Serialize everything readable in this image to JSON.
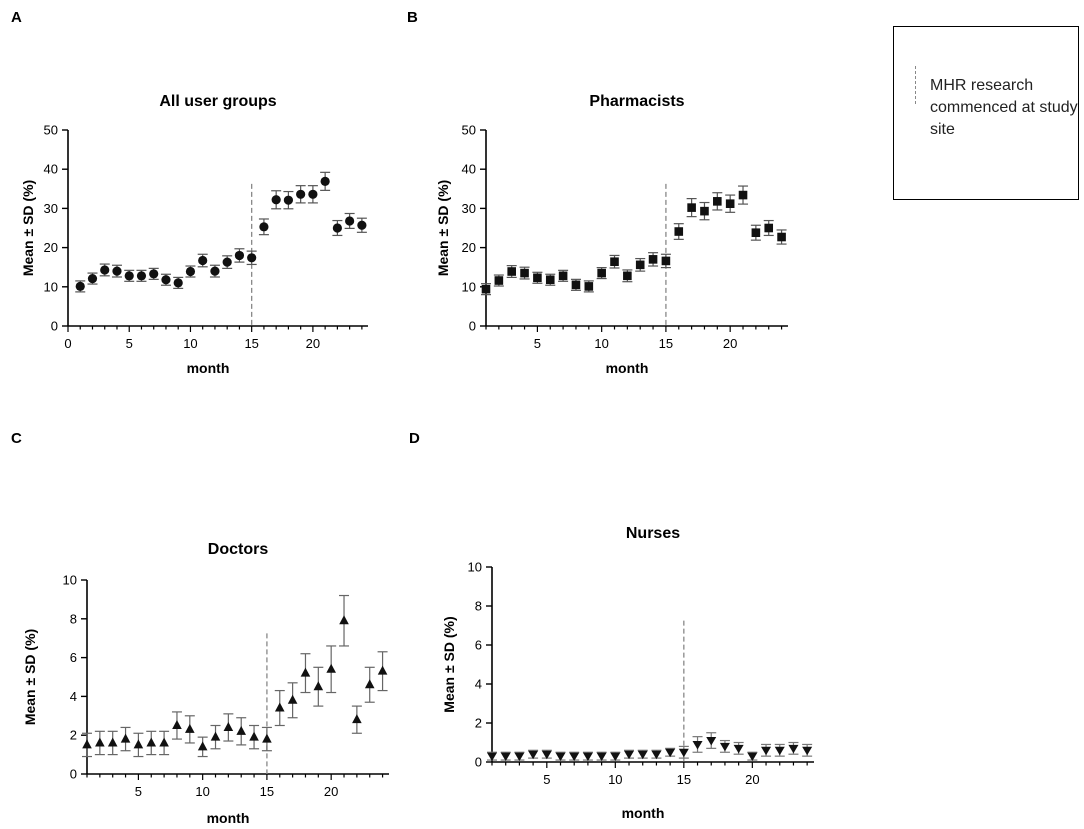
{
  "panels": [
    {
      "letter": "A"
    },
    {
      "letter": "B"
    },
    {
      "letter": "C"
    },
    {
      "letter": "D"
    }
  ],
  "legend": {
    "text": "MHR research commenced at study site"
  },
  "chart_data": [
    {
      "type": "scatter",
      "marker": "circle",
      "title": "All user groups",
      "xlabel": "month",
      "ylabel": "Mean ± SD (%)",
      "xlim": [
        0,
        24.5
      ],
      "ylim": [
        0,
        50
      ],
      "xticks": [
        0,
        5,
        10,
        15,
        20
      ],
      "yticks": [
        0,
        10,
        20,
        30,
        40,
        50
      ],
      "vline": 15,
      "x": [
        1,
        2,
        3,
        4,
        5,
        6,
        7,
        8,
        9,
        10,
        11,
        12,
        13,
        14,
        15,
        16,
        17,
        18,
        19,
        20,
        21,
        22,
        23,
        24
      ],
      "y": [
        10.1,
        12.1,
        14.3,
        14.0,
        12.8,
        12.8,
        13.3,
        11.8,
        11.0,
        13.9,
        16.7,
        14.0,
        16.3,
        18.0,
        17.4,
        25.3,
        32.2,
        32.1,
        33.6,
        33.6,
        36.9,
        25.0,
        26.8,
        25.7
      ],
      "sd": [
        1.4,
        1.4,
        1.5,
        1.5,
        1.4,
        1.4,
        1.4,
        1.4,
        1.4,
        1.4,
        1.6,
        1.5,
        1.6,
        1.7,
        1.7,
        2.0,
        2.3,
        2.2,
        2.2,
        2.2,
        2.3,
        1.9,
        1.9,
        1.8
      ]
    },
    {
      "type": "scatter",
      "marker": "square",
      "title": "Pharmacists",
      "xlabel": "month",
      "ylabel": "Mean ± SD  (%)",
      "xlim": [
        1,
        24.5
      ],
      "ylim": [
        0,
        50
      ],
      "xticks": [
        5,
        10,
        15,
        20
      ],
      "yticks": [
        0,
        10,
        20,
        30,
        40,
        50
      ],
      "vline": 15,
      "x": [
        1,
        2,
        3,
        4,
        5,
        6,
        7,
        8,
        9,
        10,
        11,
        12,
        13,
        14,
        15,
        16,
        17,
        18,
        19,
        20,
        21,
        22,
        23,
        24
      ],
      "y": [
        9.4,
        11.6,
        13.9,
        13.5,
        12.3,
        11.8,
        12.8,
        10.5,
        10.1,
        13.5,
        16.4,
        12.8,
        15.6,
        17.0,
        16.6,
        24.1,
        30.2,
        29.3,
        31.8,
        31.2,
        33.4,
        23.8,
        25.0,
        22.7
      ],
      "sd": [
        1.4,
        1.4,
        1.5,
        1.5,
        1.4,
        1.4,
        1.4,
        1.4,
        1.4,
        1.4,
        1.6,
        1.5,
        1.6,
        1.7,
        1.7,
        2.0,
        2.3,
        2.2,
        2.2,
        2.2,
        2.3,
        1.9,
        1.9,
        1.8
      ]
    },
    {
      "type": "scatter",
      "marker": "triangle-up",
      "title": "Doctors",
      "xlabel": "month",
      "ylabel": "Mean ± SD (%)",
      "xlim": [
        1,
        24.5
      ],
      "ylim": [
        0,
        10
      ],
      "xticks": [
        5,
        10,
        15,
        20
      ],
      "yticks": [
        0,
        2,
        4,
        6,
        8,
        10
      ],
      "vline": 15,
      "x": [
        1,
        2,
        3,
        4,
        5,
        6,
        7,
        8,
        9,
        10,
        11,
        12,
        13,
        14,
        15,
        16,
        17,
        18,
        19,
        20,
        21,
        22,
        23,
        24
      ],
      "y": [
        1.5,
        1.6,
        1.6,
        1.8,
        1.5,
        1.6,
        1.6,
        2.5,
        2.3,
        1.4,
        1.9,
        2.4,
        2.2,
        1.9,
        1.8,
        3.4,
        3.8,
        5.2,
        4.5,
        5.4,
        7.9,
        2.8,
        4.6,
        5.3
      ],
      "sd": [
        0.6,
        0.6,
        0.6,
        0.6,
        0.6,
        0.6,
        0.6,
        0.7,
        0.7,
        0.5,
        0.6,
        0.7,
        0.7,
        0.6,
        0.6,
        0.9,
        0.9,
        1.0,
        1.0,
        1.2,
        1.3,
        0.7,
        0.9,
        1.0
      ]
    },
    {
      "type": "scatter",
      "marker": "triangle-down",
      "title": "Nurses",
      "xlabel": "month",
      "ylabel": "Mean ± SD (%)",
      "xlim": [
        1,
        24.5
      ],
      "ylim": [
        0,
        10
      ],
      "xticks": [
        5,
        10,
        15,
        20
      ],
      "yticks": [
        0,
        2,
        4,
        6,
        8,
        10
      ],
      "vline": 15,
      "x": [
        1,
        2,
        3,
        4,
        5,
        6,
        7,
        8,
        9,
        10,
        11,
        12,
        13,
        14,
        15,
        16,
        17,
        18,
        19,
        20,
        21,
        22,
        23,
        24
      ],
      "y": [
        0.3,
        0.3,
        0.3,
        0.4,
        0.4,
        0.3,
        0.3,
        0.3,
        0.3,
        0.3,
        0.4,
        0.4,
        0.4,
        0.5,
        0.5,
        0.9,
        1.1,
        0.8,
        0.7,
        0.3,
        0.6,
        0.6,
        0.7,
        0.6
      ],
      "sd": [
        0.2,
        0.2,
        0.2,
        0.2,
        0.2,
        0.2,
        0.2,
        0.2,
        0.2,
        0.2,
        0.2,
        0.2,
        0.2,
        0.2,
        0.3,
        0.4,
        0.4,
        0.3,
        0.3,
        0.2,
        0.3,
        0.3,
        0.3,
        0.3
      ]
    }
  ]
}
